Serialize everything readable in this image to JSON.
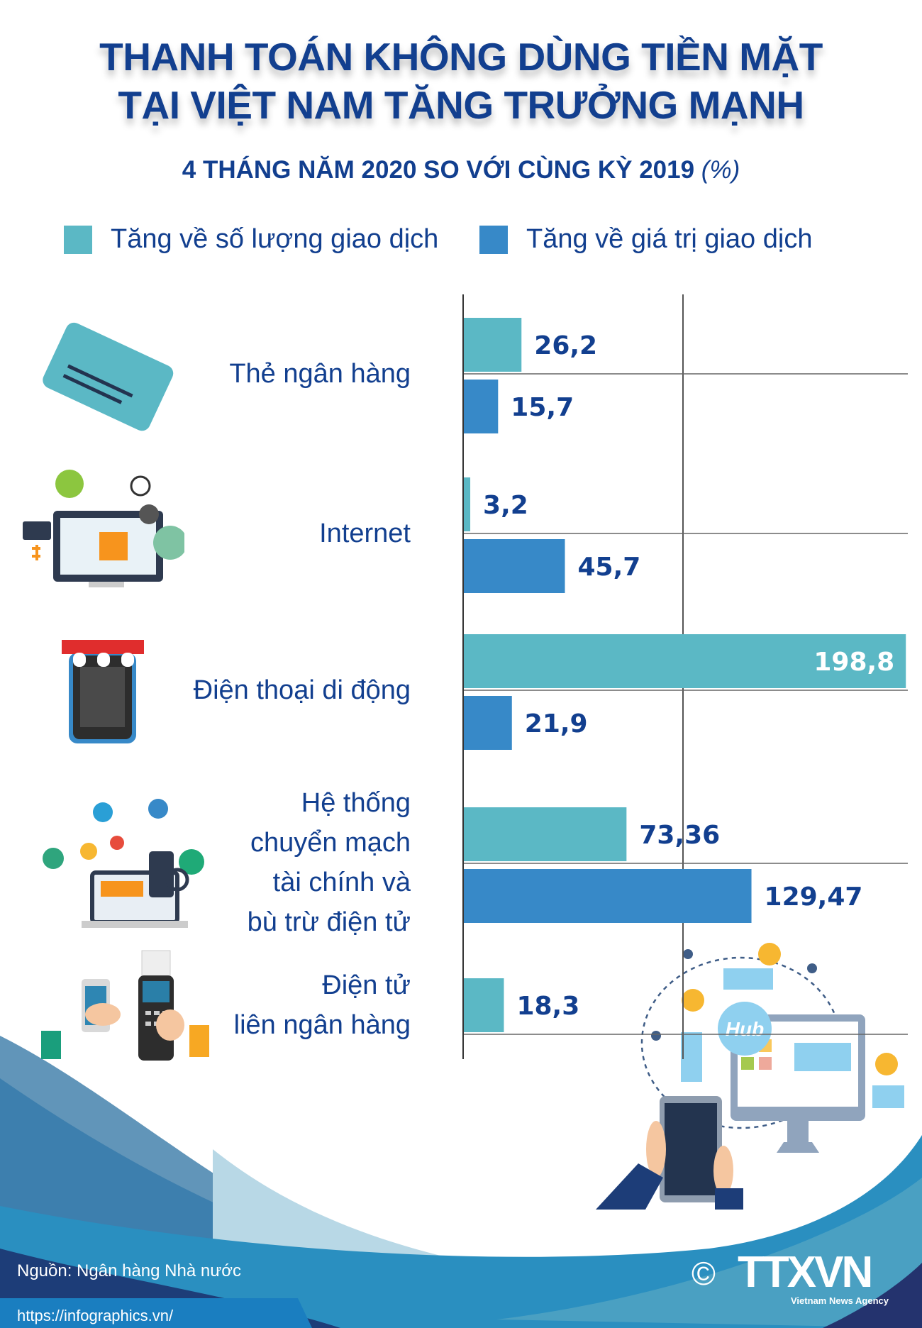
{
  "title_lines": [
    "THANH TOÁN KHÔNG DÙNG TIỀN MẶT",
    "TẠI VIỆT NAM TĂNG TRƯỞNG MẠNH"
  ],
  "subtitle": "4 THÁNG NĂM 2020 SO VỚI CÙNG KỲ 2019",
  "subtitle_unit": "(%)",
  "colors": {
    "count": "#5bb8c5",
    "value": "#3789c8",
    "text": "#123f8f"
  },
  "chart_data": {
    "type": "bar",
    "orientation": "horizontal",
    "categories": [
      "Thẻ ngân hàng",
      "Internet",
      "Điện thoại di động",
      "Hệ thống chuyển mạch tài chính và bù trừ điện tử",
      "Điện tử liên ngân hàng"
    ],
    "category_lines": [
      [
        "Thẻ ngân hàng"
      ],
      [
        "Internet"
      ],
      [
        "Điện thoại di động"
      ],
      [
        "Hệ thống",
        "chuyển mạch",
        "tài chính và",
        "bù trừ điện tử"
      ],
      [
        "Điện tử",
        "liên ngân hàng"
      ]
    ],
    "series": [
      {
        "name": "Tăng về số lượng giao dịch",
        "values": [
          26.2,
          3.2,
          198.8,
          73.36,
          18.3
        ],
        "labels": [
          "26,2",
          "3,2",
          "198,8",
          "73,36",
          "18,3"
        ]
      },
      {
        "name": "Tăng về giá trị giao dịch",
        "values": [
          15.7,
          45.7,
          21.9,
          129.47,
          null
        ],
        "labels": [
          "15,7",
          "45,7",
          "21,9",
          "129,47",
          ""
        ]
      }
    ],
    "xlim": [
      0,
      200
    ],
    "grid": true,
    "legend": "top"
  },
  "footer": {
    "source": "Nguồn: Ngân hàng Nhà nước",
    "url": "https://infographics.vn/",
    "logo_text": "TTXVN",
    "logo_sub": "Vietnam News Agency",
    "copyright": "©"
  },
  "illustration": {
    "hub_label": "Hub"
  },
  "icons": [
    "credit-card-icon",
    "internet-shopping-icon",
    "mobile-store-icon",
    "financial-switch-icon",
    "interbank-transfer-icon",
    "hub-computer-icon"
  ]
}
